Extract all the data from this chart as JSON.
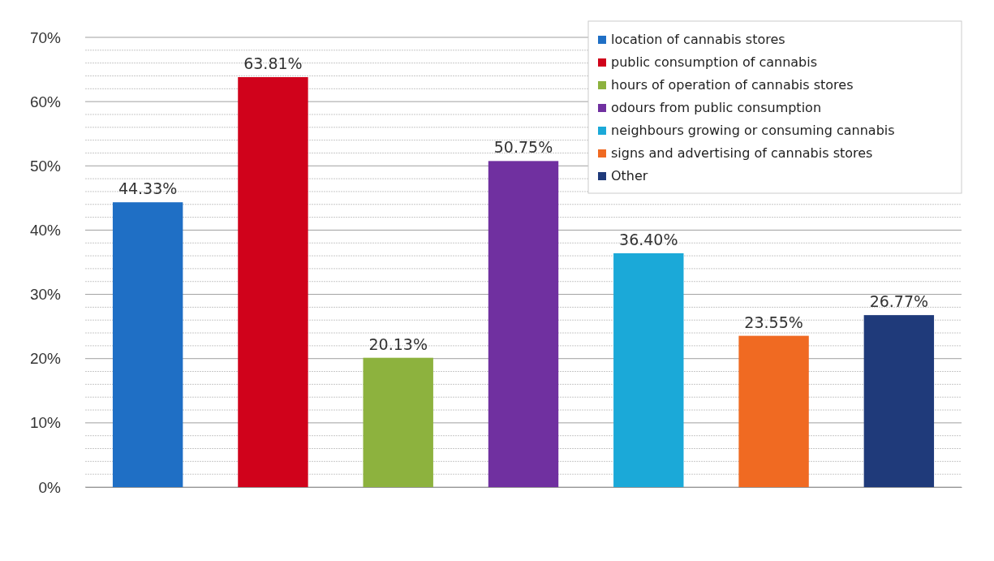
{
  "chart_data": {
    "type": "bar",
    "categories": [
      null,
      null,
      null,
      null,
      null,
      null,
      null
    ],
    "series": [
      {
        "name": "location of cannabis stores",
        "color": "#1f6fc5",
        "values": [
          44.33,
          null,
          null,
          null,
          null,
          null,
          null
        ],
        "value_labels": [
          "44.33%",
          null,
          null,
          null,
          null,
          null,
          null
        ]
      },
      {
        "name": "public consumption of cannabis",
        "color": "#d0021b",
        "values": [
          null,
          63.81,
          null,
          null,
          null,
          null,
          null
        ],
        "value_labels": [
          null,
          "63.81%",
          null,
          null,
          null,
          null,
          null
        ]
      },
      {
        "name": "hours of operation of cannabis stores",
        "color": "#8db23e",
        "values": [
          null,
          null,
          20.13,
          null,
          null,
          null,
          null
        ],
        "value_labels": [
          null,
          null,
          "20.13%",
          null,
          null,
          null,
          null
        ]
      },
      {
        "name": "odours from public consumption",
        "color": "#7030a0",
        "values": [
          null,
          null,
          null,
          50.75,
          null,
          null,
          null
        ],
        "value_labels": [
          null,
          null,
          null,
          "50.75%",
          null,
          null,
          null
        ]
      },
      {
        "name": "neighbours growing or consuming cannabis",
        "color": "#1ba9d8",
        "values": [
          null,
          null,
          null,
          null,
          36.4,
          null,
          null
        ],
        "value_labels": [
          null,
          null,
          null,
          null,
          "36.40%",
          null,
          null
        ]
      },
      {
        "name": "signs and advertising of cannabis stores",
        "color": "#f06a22",
        "values": [
          null,
          null,
          null,
          null,
          null,
          23.55,
          null
        ],
        "value_labels": [
          null,
          null,
          null,
          null,
          null,
          "23.55%",
          null
        ]
      },
      {
        "name": "Other",
        "color": "#1f3a7a",
        "values": [
          null,
          null,
          null,
          null,
          null,
          null,
          26.77
        ],
        "value_labels": [
          null,
          null,
          null,
          null,
          null,
          null,
          "26.77%"
        ]
      }
    ],
    "ylim": [
      0,
      70
    ],
    "yticks": [
      {
        "value": 0,
        "label": "0%"
      },
      {
        "value": 2,
        "label": null
      },
      {
        "value": 4,
        "label": null
      },
      {
        "value": 6,
        "label": null
      },
      {
        "value": 8,
        "label": null
      },
      {
        "value": 10,
        "label": "10%"
      },
      {
        "value": 12,
        "label": null
      },
      {
        "value": 14,
        "label": null
      },
      {
        "value": 16,
        "label": null
      },
      {
        "value": 18,
        "label": null
      },
      {
        "value": 20,
        "label": "20%"
      },
      {
        "value": 22,
        "label": null
      },
      {
        "value": 24,
        "label": null
      },
      {
        "value": 26,
        "label": null
      },
      {
        "value": 28,
        "label": null
      },
      {
        "value": 30,
        "label": "30%"
      },
      {
        "value": 32,
        "label": null
      },
      {
        "value": 34,
        "label": null
      },
      {
        "value": 36,
        "label": null
      },
      {
        "value": 38,
        "label": null
      },
      {
        "value": 40,
        "label": "40%"
      },
      {
        "value": 42,
        "label": null
      },
      {
        "value": 44,
        "label": null
      },
      {
        "value": 46,
        "label": null
      },
      {
        "value": 48,
        "label": null
      },
      {
        "value": 50,
        "label": "50%"
      },
      {
        "value": 52,
        "label": null
      },
      {
        "value": 54,
        "label": null
      },
      {
        "value": 56,
        "label": null
      },
      {
        "value": 58,
        "label": null
      },
      {
        "value": 60,
        "label": "60%"
      },
      {
        "value": 62,
        "label": null
      },
      {
        "value": 64,
        "label": null
      },
      {
        "value": 66,
        "label": null
      },
      {
        "value": 68,
        "label": null
      },
      {
        "value": 70,
        "label": "70%"
      }
    ],
    "grid": "y",
    "legend": "top right"
  }
}
